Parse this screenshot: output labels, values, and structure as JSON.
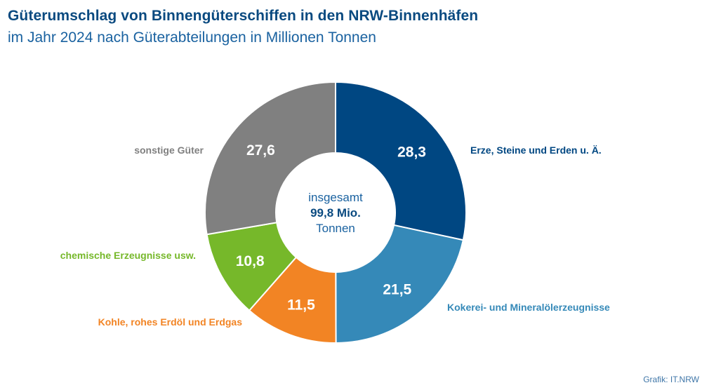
{
  "title": "Güterumschlag von Binnengüterschiffen in den NRW-Binnenhäfen",
  "subtitle": "im Jahr 2024 nach Güterabteilungen in Millionen Tonnen",
  "source": "Grafik: IT.NRW",
  "chart_data": {
    "type": "pie",
    "center_label": {
      "line1": "insgesamt",
      "line2": "99,8 Mio.",
      "line3": "Tonnen"
    },
    "slices": [
      {
        "label": "Erze, Steine und Erden u. Ä.",
        "value": 28.3,
        "value_label": "28,3",
        "color": "#004782"
      },
      {
        "label": "Kokerei- und Mineralölerzeugnisse",
        "value": 21.5,
        "value_label": "21,5",
        "color": "#3589b8"
      },
      {
        "label": "Kohle, rohes Erdöl und Erdgas",
        "value": 11.5,
        "value_label": "11,5",
        "color": "#f28424"
      },
      {
        "label": "chemische Erzeugnisse usw.",
        "value": 10.8,
        "value_label": "10,8",
        "color": "#76b82a"
      },
      {
        "label": "sonstige Güter",
        "value": 27.6,
        "value_label": "27,6",
        "color": "#808080"
      }
    ]
  }
}
